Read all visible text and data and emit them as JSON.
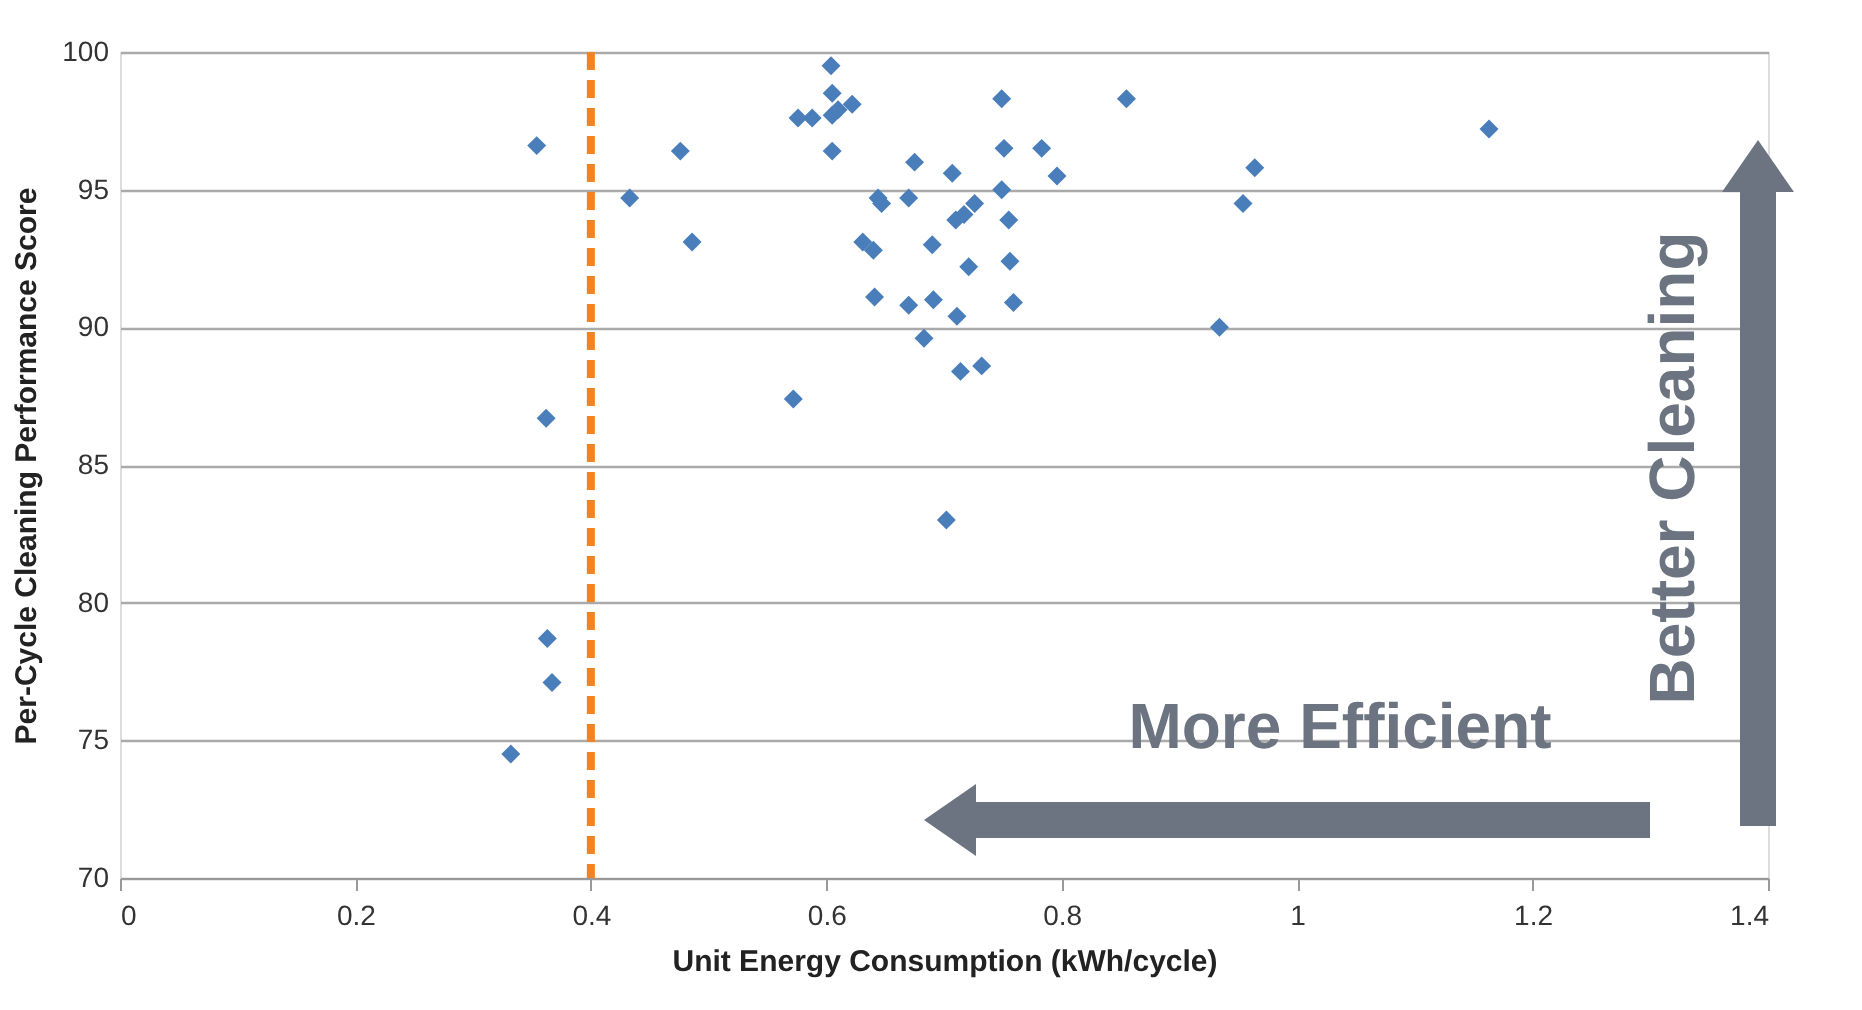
{
  "chart_data": {
    "type": "scatter",
    "xlabel": "Unit Energy Consumption (kWh/cycle)",
    "ylabel": "Per-Cycle Cleaning Performance Score",
    "x": [
      0.354,
      0.433,
      0.476,
      0.486,
      0.362,
      0.363,
      0.367,
      0.332,
      0.572,
      0.604,
      0.576,
      0.588,
      0.605,
      0.61,
      0.622,
      0.605,
      0.605,
      0.675,
      0.707,
      0.749,
      0.751,
      0.783,
      0.796,
      0.749,
      0.644,
      0.647,
      0.67,
      0.726,
      0.717,
      0.71,
      0.755,
      0.631,
      0.64,
      0.69,
      0.721,
      0.756,
      0.641,
      0.67,
      0.691,
      0.711,
      0.759,
      0.683,
      0.714,
      0.732,
      0.702,
      0.855,
      0.964,
      0.954,
      0.934,
      1.163
    ],
    "series": [
      {
        "color": "#4a7ebb",
        "values": [
          96.6,
          94.7,
          96.4,
          93.1,
          86.7,
          78.7,
          77.1,
          74.5,
          87.4,
          99.5,
          97.6,
          97.6,
          98.5,
          97.9,
          98.1,
          96.4,
          97.7,
          96.0,
          95.6,
          98.3,
          96.5,
          96.5,
          95.5,
          95.0,
          94.7,
          94.5,
          94.7,
          94.5,
          94.1,
          93.9,
          93.9,
          93.1,
          92.8,
          93.0,
          92.2,
          92.4,
          91.1,
          90.8,
          91.0,
          90.4,
          90.9,
          89.6,
          88.4,
          88.6,
          83.0,
          98.3,
          95.8,
          94.5,
          90.0,
          97.2
        ]
      }
    ],
    "marker": "diamond",
    "xlim": [
      0,
      1.4
    ],
    "xticks": [
      0,
      0.2,
      0.4,
      0.6,
      0.8,
      1,
      1.2,
      1.4
    ],
    "ylim": [
      70,
      100
    ],
    "yticks": [
      70,
      75,
      80,
      85,
      90,
      95,
      100
    ],
    "grid": "y",
    "ref_lines": [
      {
        "axis": "x",
        "value": 0.4,
        "color": "#f58220",
        "line_style": "dashed"
      }
    ],
    "annotations": [
      "More Efficient",
      "Better Cleaning"
    ]
  }
}
